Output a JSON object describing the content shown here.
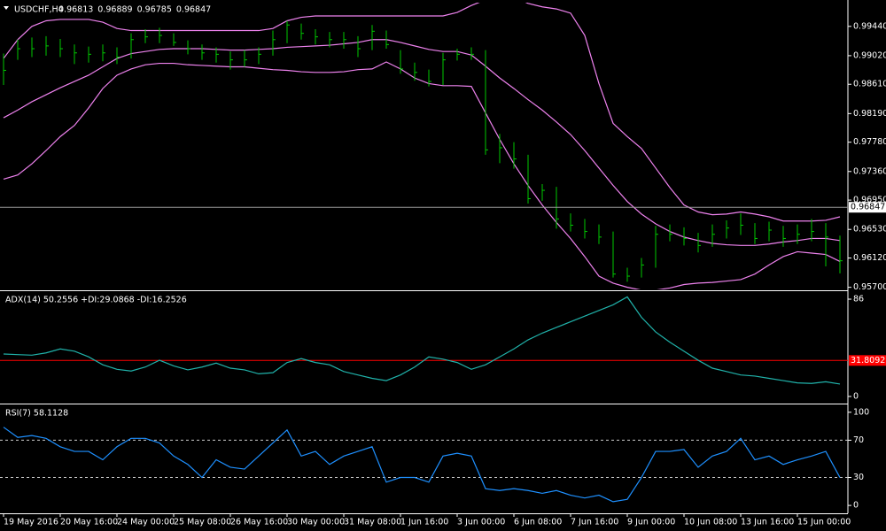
{
  "chart_data": [
    {
      "type": "ohlc",
      "title": "USDCHF,H4",
      "quote": [
        0.96813,
        0.96889,
        0.96785,
        0.96847
      ],
      "color": "#00c800",
      "high": [
        0.9905,
        0.9925,
        0.9928,
        0.993,
        0.9926,
        0.9918,
        0.9915,
        0.9918,
        0.9914,
        0.9934,
        0.994,
        0.9942,
        0.9934,
        0.9924,
        0.9918,
        0.9914,
        0.9908,
        0.991,
        0.9914,
        0.9938,
        0.9952,
        0.9948,
        0.994,
        0.9936,
        0.9936,
        0.993,
        0.9946,
        0.9938,
        0.991,
        0.9892,
        0.9882,
        0.9906,
        0.9912,
        0.9914,
        0.991,
        0.979,
        0.9778,
        0.976,
        0.9718,
        0.9714,
        0.9676,
        0.9668,
        0.966,
        0.965,
        0.9598,
        0.9612,
        0.9658,
        0.966,
        0.9656,
        0.9648,
        0.966,
        0.9666,
        0.9676,
        0.9662,
        0.9664,
        0.9658,
        0.966,
        0.9668,
        0.9662,
        0.9644
      ],
      "low": [
        0.986,
        0.9896,
        0.99,
        0.9902,
        0.99,
        0.989,
        0.9892,
        0.9894,
        0.989,
        0.9898,
        0.992,
        0.992,
        0.9916,
        0.9904,
        0.9896,
        0.9892,
        0.9882,
        0.9886,
        0.989,
        0.9902,
        0.992,
        0.9925,
        0.9918,
        0.9914,
        0.9912,
        0.99,
        0.991,
        0.9912,
        0.9876,
        0.9866,
        0.9858,
        0.986,
        0.9895,
        0.9896,
        0.976,
        0.9748,
        0.974,
        0.969,
        0.9694,
        0.9654,
        0.965,
        0.964,
        0.9632,
        0.9584,
        0.9578,
        0.9584,
        0.9598,
        0.9636,
        0.963,
        0.962,
        0.9628,
        0.964,
        0.9645,
        0.9632,
        0.9636,
        0.9628,
        0.9632,
        0.9636,
        0.96,
        0.959
      ],
      "close": [
        0.9881,
        0.9912,
        0.9912,
        0.9916,
        0.9912,
        0.9906,
        0.9904,
        0.9906,
        0.99,
        0.9925,
        0.9929,
        0.9931,
        0.9921,
        0.9912,
        0.9906,
        0.9904,
        0.9896,
        0.9896,
        0.9904,
        0.9925,
        0.9946,
        0.9934,
        0.9929,
        0.9925,
        0.9925,
        0.9912,
        0.9937,
        0.9918,
        0.9883,
        0.9878,
        0.9865,
        0.9896,
        0.9904,
        0.9904,
        0.9767,
        0.977,
        0.9754,
        0.9697,
        0.9709,
        0.9668,
        0.9659,
        0.965,
        0.9642,
        0.9589,
        0.9586,
        0.9602,
        0.9646,
        0.9646,
        0.964,
        0.963,
        0.9646,
        0.9655,
        0.9659,
        0.964,
        0.9652,
        0.964,
        0.9646,
        0.965,
        0.9642,
        0.9608
      ],
      "series": [
        {
          "color": "#ee82ee",
          "values": [
            0.9898,
            0.9925,
            0.9944,
            0.9952,
            0.9954,
            0.9954,
            0.9954,
            0.995,
            0.9941,
            0.9938,
            0.9938,
            0.9938,
            0.9938,
            0.9938,
            0.9938,
            0.9938,
            0.9938,
            0.9938,
            0.9938,
            0.9941,
            0.9952,
            0.9957,
            0.9959,
            0.9959,
            0.9959,
            0.9959,
            0.9959,
            0.9959,
            0.9959,
            0.9959,
            0.9959,
            0.9959,
            0.9964,
            0.9974,
            0.9982,
            0.9988,
            0.9986,
            0.9977,
            0.9972,
            0.9969,
            0.9963,
            0.9931,
            0.9862,
            0.9805,
            0.9786,
            0.9769,
            0.9741,
            0.9713,
            0.9688,
            0.9678,
            0.9674,
            0.9675,
            0.9678,
            0.9675,
            0.9671,
            0.9665,
            0.9665,
            0.9665,
            0.9666,
            0.9671
          ]
        },
        {
          "color": "#ee82ee",
          "values": [
            0.9813,
            0.9824,
            0.9836,
            0.9846,
            0.9856,
            0.9865,
            0.9874,
            0.9886,
            0.9898,
            0.9905,
            0.9908,
            0.9911,
            0.9912,
            0.9912,
            0.9912,
            0.9911,
            0.991,
            0.991,
            0.9911,
            0.9912,
            0.9914,
            0.9915,
            0.9916,
            0.9917,
            0.9919,
            0.9921,
            0.9925,
            0.9925,
            0.9921,
            0.9916,
            0.9911,
            0.9908,
            0.9908,
            0.9903,
            0.9887,
            0.987,
            0.9855,
            0.9839,
            0.9824,
            0.9807,
            0.9789,
            0.9766,
            0.9741,
            0.9716,
            0.9693,
            0.9675,
            0.9661,
            0.965,
            0.9642,
            0.9637,
            0.9633,
            0.9631,
            0.963,
            0.963,
            0.9632,
            0.9635,
            0.9637,
            0.964,
            0.964,
            0.9637
          ]
        },
        {
          "color": "#ee82ee",
          "values": [
            0.9725,
            0.9731,
            0.9747,
            0.9766,
            0.9786,
            0.9802,
            0.9827,
            0.9855,
            0.9874,
            0.9883,
            0.9889,
            0.9891,
            0.9891,
            0.9889,
            0.9888,
            0.9887,
            0.9886,
            0.9886,
            0.9884,
            0.9882,
            0.9881,
            0.9879,
            0.9878,
            0.9878,
            0.9879,
            0.9882,
            0.9883,
            0.9893,
            0.9883,
            0.987,
            0.9862,
            0.9859,
            0.9859,
            0.9858,
            0.982,
            0.9782,
            0.9747,
            0.9716,
            0.9688,
            0.9663,
            0.964,
            0.9614,
            0.9586,
            0.9576,
            0.957,
            0.9566,
            0.9566,
            0.9569,
            0.9574,
            0.9576,
            0.9577,
            0.9579,
            0.9581,
            0.9589,
            0.9602,
            0.9614,
            0.9621,
            0.9619,
            0.9617,
            0.9607
          ]
        }
      ],
      "ylim": [
        0.9567,
        0.9978
      ],
      "yticks": [
        {
          "value": 0.9944,
          "label": "0.99440"
        },
        {
          "value": 0.9902,
          "label": "0.99020"
        },
        {
          "value": 0.9861,
          "label": "0.98610"
        },
        {
          "value": 0.9819,
          "label": "0.98190"
        },
        {
          "value": 0.9778,
          "label": "0.97780"
        },
        {
          "value": 0.9736,
          "label": "0.97360"
        },
        {
          "value": 0.9695,
          "label": "0.96950"
        },
        {
          "value": 0.9653,
          "label": "0.96530"
        },
        {
          "value": 0.9612,
          "label": "0.96120"
        },
        {
          "value": 0.957,
          "label": "0.95700"
        }
      ]
    },
    {
      "type": "line",
      "title": "ADX(14) 50.2556 +DI:29.0868 -DI:16.2526",
      "color": "#20b2aa",
      "values": [
        37.5,
        37,
        36.5,
        38.5,
        42,
        40,
        35,
        28,
        24,
        22.5,
        26,
        32,
        27,
        23.5,
        26,
        29.5,
        25,
        23.5,
        20,
        21,
        30,
        33.5,
        30,
        28,
        22,
        19,
        16,
        14,
        19,
        26,
        35,
        33,
        30,
        24,
        28,
        35,
        42,
        50,
        56,
        61,
        66,
        71,
        76,
        81,
        88,
        70,
        57,
        48,
        40,
        32,
        25,
        22,
        19,
        18,
        16,
        14,
        12,
        11.5,
        13,
        11
      ],
      "ylim": [
        -5.5,
        91.5
      ],
      "yticks": [
        86,
        0
      ],
      "level": 31.8092,
      "level_color": "#ff0000"
    },
    {
      "type": "line",
      "title": "RSI(7) 58.1128",
      "color": "#1e90ff",
      "values": [
        84,
        73,
        75,
        72,
        63,
        58,
        58,
        49,
        63,
        72,
        72,
        67,
        53,
        44,
        30,
        49,
        41,
        39,
        53,
        67,
        81,
        53,
        58,
        44,
        53,
        58,
        63,
        25,
        30,
        30,
        25,
        53,
        56,
        53,
        18,
        16,
        18,
        16,
        13,
        16,
        11,
        8,
        11,
        4,
        6.5,
        30,
        58,
        58,
        60,
        41,
        53,
        58,
        72,
        49,
        53,
        44,
        49,
        53,
        58,
        30
      ],
      "ylim": [
        -7.5,
        106.5
      ],
      "yticks": [
        100,
        70,
        30,
        0
      ],
      "levels": [
        70,
        30
      ],
      "categories": [
        "19 May 2016",
        null,
        null,
        null,
        "20 May 16:00",
        null,
        null,
        null,
        "24 May 00:00",
        null,
        null,
        null,
        "25 May 08:00",
        null,
        null,
        null,
        "26 May 16:00",
        null,
        null,
        null,
        "30 May 00:00",
        null,
        null,
        null,
        "31 May 08:00",
        null,
        null,
        null,
        "1 Jun 16:00",
        null,
        null,
        null,
        "3 Jun 00:00",
        null,
        null,
        null,
        "6 Jun 08:00",
        null,
        null,
        null,
        "7 Jun 16:00",
        null,
        null,
        null,
        "9 Jun 00:00",
        null,
        null,
        null,
        "10 Jun 08:00",
        null,
        null,
        null,
        "13 Jun 16:00",
        null,
        null,
        null,
        "15 Jun 00:00",
        null,
        null,
        null
      ]
    }
  ]
}
